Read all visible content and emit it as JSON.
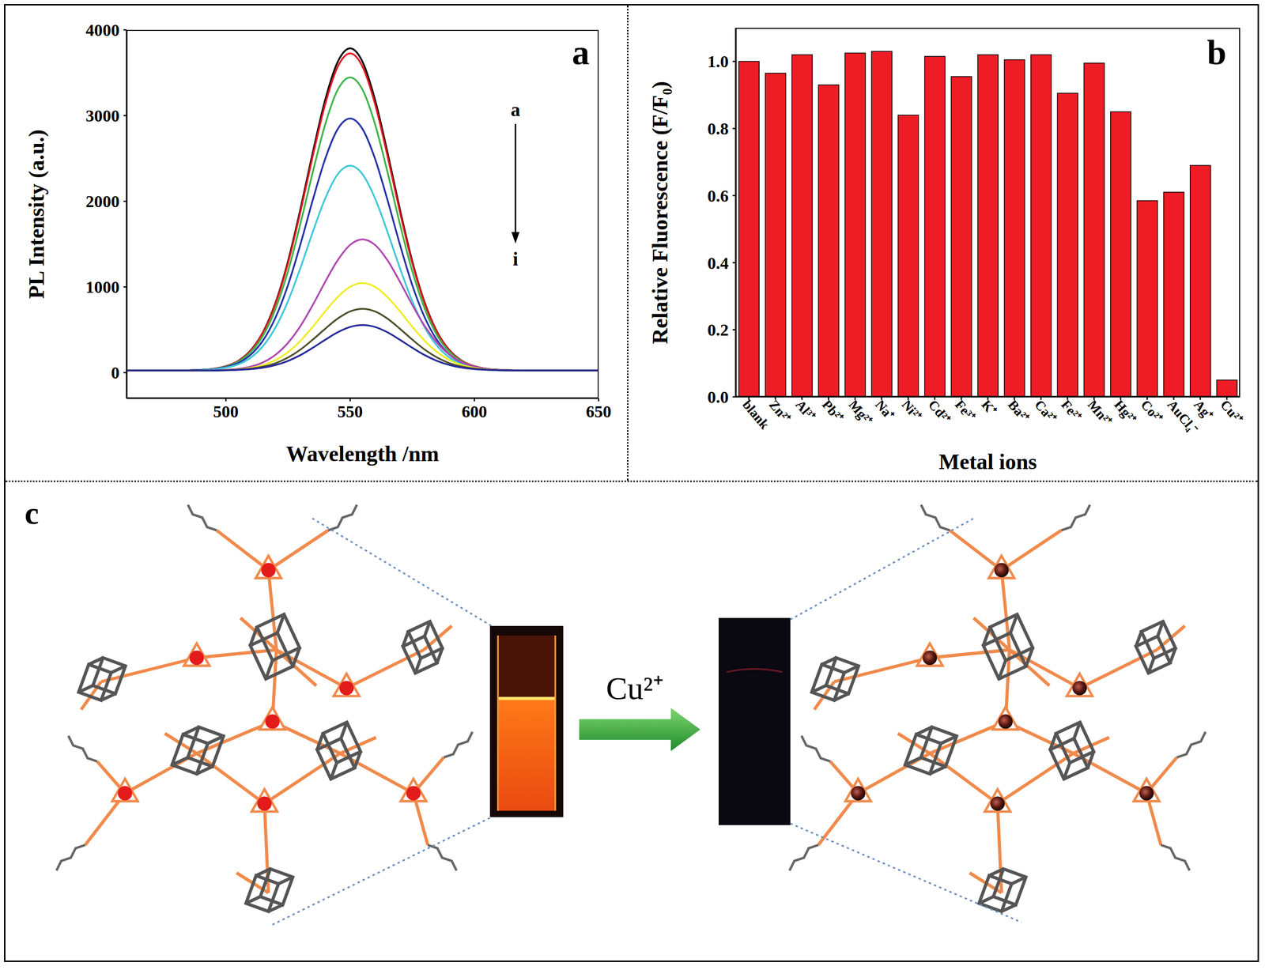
{
  "chart_data": [
    {
      "type": "line",
      "label": "a",
      "x_label": "Wavelength /nm",
      "y_label": "PL Intensity (a.u.)",
      "annotations": [
        "a",
        "i"
      ],
      "x": [
        460,
        470,
        480,
        490,
        495,
        500,
        505,
        510,
        515,
        520,
        525,
        530,
        535,
        540,
        545,
        550,
        555,
        560,
        565,
        570,
        575,
        580,
        585,
        590,
        595,
        600,
        605,
        610,
        620,
        630,
        640,
        650
      ],
      "series": [
        {
          "color": "#000000",
          "values": [
            25,
            25,
            25,
            33,
            45,
            75,
            138,
            261,
            476,
            818,
            1300,
            1909,
            2574,
            3187,
            3627,
            3785,
            3627,
            3187,
            2574,
            1909,
            1300,
            818,
            476,
            261,
            138,
            75,
            45,
            33,
            25,
            25,
            25,
            25
          ]
        },
        {
          "color": "#e8141c",
          "values": [
            25,
            25,
            25,
            32,
            45,
            74,
            136,
            257,
            469,
            806,
            1279,
            1879,
            2534,
            3137,
            3570,
            3725,
            3570,
            3137,
            2534,
            1879,
            1279,
            806,
            469,
            257,
            136,
            74,
            45,
            32,
            25,
            25,
            25,
            25
          ]
        },
        {
          "color": "#3cb44b",
          "values": [
            25,
            25,
            25,
            32,
            43,
            70,
            128,
            240,
            435,
            747,
            1184,
            1738,
            2344,
            2901,
            3301,
            3445,
            3301,
            2901,
            2344,
            1738,
            1184,
            747,
            435,
            240,
            128,
            70,
            43,
            32,
            25,
            25,
            25,
            25
          ]
        },
        {
          "color": "#2632a8",
          "values": [
            25,
            25,
            25,
            31,
            41,
            64,
            113,
            210,
            378,
            645,
            1022,
            1498,
            2018,
            2498,
            2842,
            2965,
            2842,
            2498,
            2018,
            1498,
            1022,
            645,
            378,
            210,
            113,
            64,
            41,
            31,
            25,
            25,
            25,
            25
          ]
        },
        {
          "color": "#40c8d8",
          "values": [
            25,
            25,
            25,
            30,
            38,
            57,
            97,
            175,
            312,
            529,
            835,
            1222,
            1645,
            2035,
            2315,
            2415,
            2315,
            2035,
            1645,
            1222,
            835,
            529,
            312,
            175,
            97,
            57,
            38,
            30,
            25,
            25,
            25,
            25
          ]
        },
        {
          "color": "#b048b0",
          "values": [
            25,
            25,
            25,
            26,
            28,
            33,
            45,
            71,
            121,
            209,
            348,
            544,
            792,
            1062,
            1312,
            1491,
            1555,
            1491,
            1312,
            1062,
            792,
            544,
            348,
            209,
            121,
            71,
            45,
            33,
            26,
            25,
            25,
            25
          ]
        },
        {
          "color": "#f0ec28",
          "values": [
            25,
            25,
            25,
            26,
            27,
            30,
            38,
            56,
            89,
            147,
            240,
            371,
            536,
            717,
            883,
            1002,
            1045,
            1002,
            883,
            717,
            536,
            371,
            240,
            147,
            89,
            56,
            38,
            30,
            26,
            25,
            25,
            25
          ]
        },
        {
          "color": "#50502a",
          "values": [
            25,
            25,
            25,
            26,
            26,
            29,
            35,
            47,
            70,
            111,
            177,
            269,
            386,
            513,
            631,
            715,
            745,
            715,
            631,
            513,
            386,
            269,
            177,
            111,
            70,
            47,
            35,
            29,
            26,
            25,
            25,
            25
          ]
        },
        {
          "color": "#262a9a",
          "values": [
            25,
            25,
            25,
            25,
            26,
            28,
            32,
            41,
            58,
            89,
            137,
            205,
            291,
            384,
            471,
            533,
            555,
            533,
            471,
            384,
            291,
            205,
            137,
            89,
            58,
            41,
            32,
            28,
            25,
            25,
            25,
            25
          ]
        }
      ],
      "xlim": [
        460,
        650
      ],
      "xticks": [
        500,
        550,
        600,
        650
      ],
      "ylim": [
        -300,
        4000
      ],
      "yticks": [
        0,
        1000,
        2000,
        3000,
        4000
      ]
    },
    {
      "type": "bar",
      "label": "b",
      "x_label": "Metal ions",
      "y_label": "Relative Fluorescence (F/F₀)",
      "categories": [
        "blank",
        "Zn²⁺",
        "Al³⁺",
        "Pb²⁺",
        "Mg²⁺",
        "Na⁺",
        "Ni²⁺",
        "Cd²⁺",
        "Fe³⁺",
        "K⁺",
        "Ba²⁺",
        "Ca²⁺",
        "Fe²⁺",
        "Mn²⁺",
        "Hg²⁺",
        "Co²⁺",
        "AuCl₄⁻",
        "Ag⁺",
        "Cu²⁺"
      ],
      "values": [
        1.0,
        0.965,
        1.02,
        0.93,
        1.025,
        1.03,
        0.84,
        1.015,
        0.955,
        1.02,
        1.005,
        1.02,
        0.905,
        0.995,
        0.85,
        0.585,
        0.61,
        0.69,
        0.05
      ],
      "color": "#ee1c24",
      "ylim": [
        0,
        1.1
      ],
      "yticks": [
        {
          "value": 0,
          "label": "0.0"
        },
        {
          "value": 0.2,
          "label": "0.2"
        },
        {
          "value": 0.4,
          "label": "0.4"
        },
        {
          "value": 0.6,
          "label": "0.6"
        },
        {
          "value": 0.8,
          "label": "0.8"
        },
        {
          "value": 1.0,
          "label": "1.0"
        }
      ]
    }
  ],
  "diagram": {
    "label": "c",
    "arrow_label": "Cu²⁺"
  }
}
